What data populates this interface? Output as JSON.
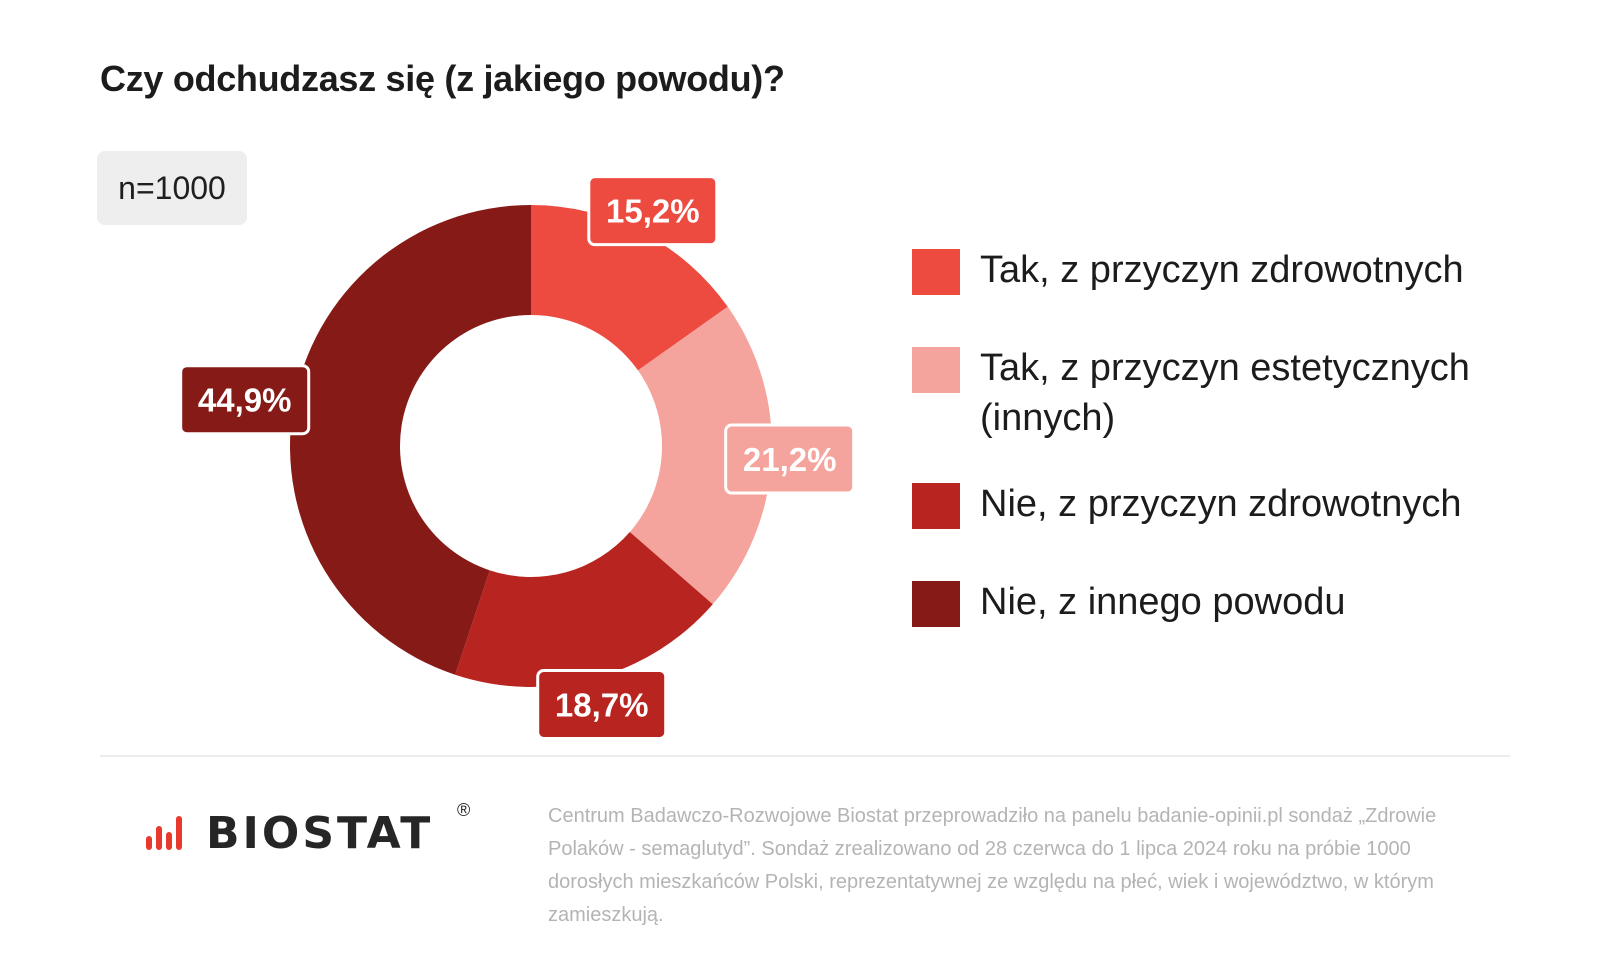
{
  "title": "Czy odchudzasz się (z jakiego powodu)?",
  "sample": "n=1000",
  "chart_data": {
    "type": "pie",
    "variant": "donut",
    "categories": [
      "Tak, z przyczyn zdrowotnych",
      "Tak, z przyczyn estetycznych (innych)",
      "Nie, z przyczyn zdrowotnych",
      "Nie, z innego powodu"
    ],
    "values": [
      15.2,
      21.2,
      18.7,
      44.9
    ],
    "labels": [
      "15,2%",
      "21,2%",
      "18,7%",
      "44,9%"
    ],
    "colors": [
      "#ed4a40",
      "#f5a49d",
      "#b8241f",
      "#861a16"
    ],
    "label_text_colors": [
      "#ffffff",
      "#ffffff",
      "#ffffff",
      "#ffffff"
    ],
    "legend_position": "right"
  },
  "legend": [
    {
      "label": "Tak, z przyczyn zdrowotnych",
      "color": "#ed4a40"
    },
    {
      "label": "Tak, z przyczyn estetycznych (innych)",
      "color": "#f5a49d"
    },
    {
      "label": "Nie, z przyczyn zdrowotnych",
      "color": "#b8241f"
    },
    {
      "label": "Nie, z innego powodu",
      "color": "#861a16"
    }
  ],
  "footer": {
    "logo_text": "BIOSTAT",
    "logo_mark": "®",
    "note": "Centrum Badawczo-Rozwojowe Biostat przeprowadziło na panelu badanie-opinii.pl sondaż „Zdrowie Polaków - semaglutyd”. Sondaż zrealizowano od 28 czerwca do 1 lipca 2024 roku na próbie 1000 dorosłych mieszkańców Polski, reprezentatywnej ze względu na płeć, wiek i województwo, w którym zamieszkują."
  }
}
